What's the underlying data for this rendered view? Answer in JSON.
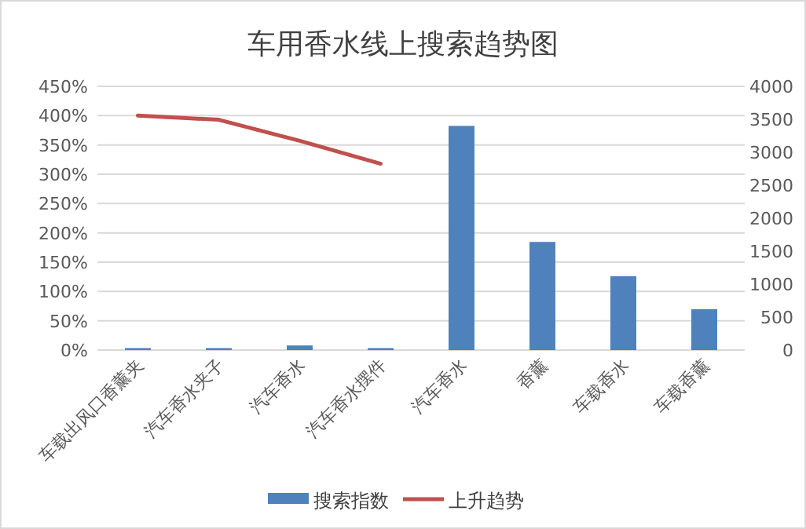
{
  "chart_data": {
    "type": "bar",
    "title": "车用香水线上搜索趋势图",
    "categories": [
      "车载出风口香薰夹",
      "汽车香水夹子",
      "汽车香水",
      "汽车香水摆件",
      "汽车香水",
      "香薰",
      "车载香水",
      "车载香薰"
    ],
    "series": [
      {
        "name": "搜索指数",
        "axis": "y2",
        "color": "#4f81bd",
        "values": [
          30,
          30,
          70,
          30,
          3400,
          1640,
          1120,
          620
        ]
      },
      {
        "name": "上升趋势",
        "type": "line",
        "axis": "y",
        "color": "#c0504d",
        "values": [
          400,
          393,
          357,
          318,
          null,
          null,
          null,
          null
        ]
      }
    ],
    "ylim": [
      0,
      450
    ],
    "yticks": [
      {
        "value": 0,
        "label": "0%"
      },
      {
        "value": 50,
        "label": "50%"
      },
      {
        "value": 100,
        "label": "100%"
      },
      {
        "value": 150,
        "label": "150%"
      },
      {
        "value": 200,
        "label": "200%"
      },
      {
        "value": 250,
        "label": "250%"
      },
      {
        "value": 300,
        "label": "300%"
      },
      {
        "value": 350,
        "label": "350%"
      },
      {
        "value": 400,
        "label": "400%"
      },
      {
        "value": 450,
        "label": "450%"
      }
    ],
    "y2lim": [
      0,
      4000
    ],
    "y2ticks": [
      0,
      500,
      1000,
      1500,
      2000,
      2500,
      3000,
      3500,
      4000
    ],
    "grid": "y",
    "legend": "bottom",
    "marker": "none",
    "line_style": "solid"
  }
}
